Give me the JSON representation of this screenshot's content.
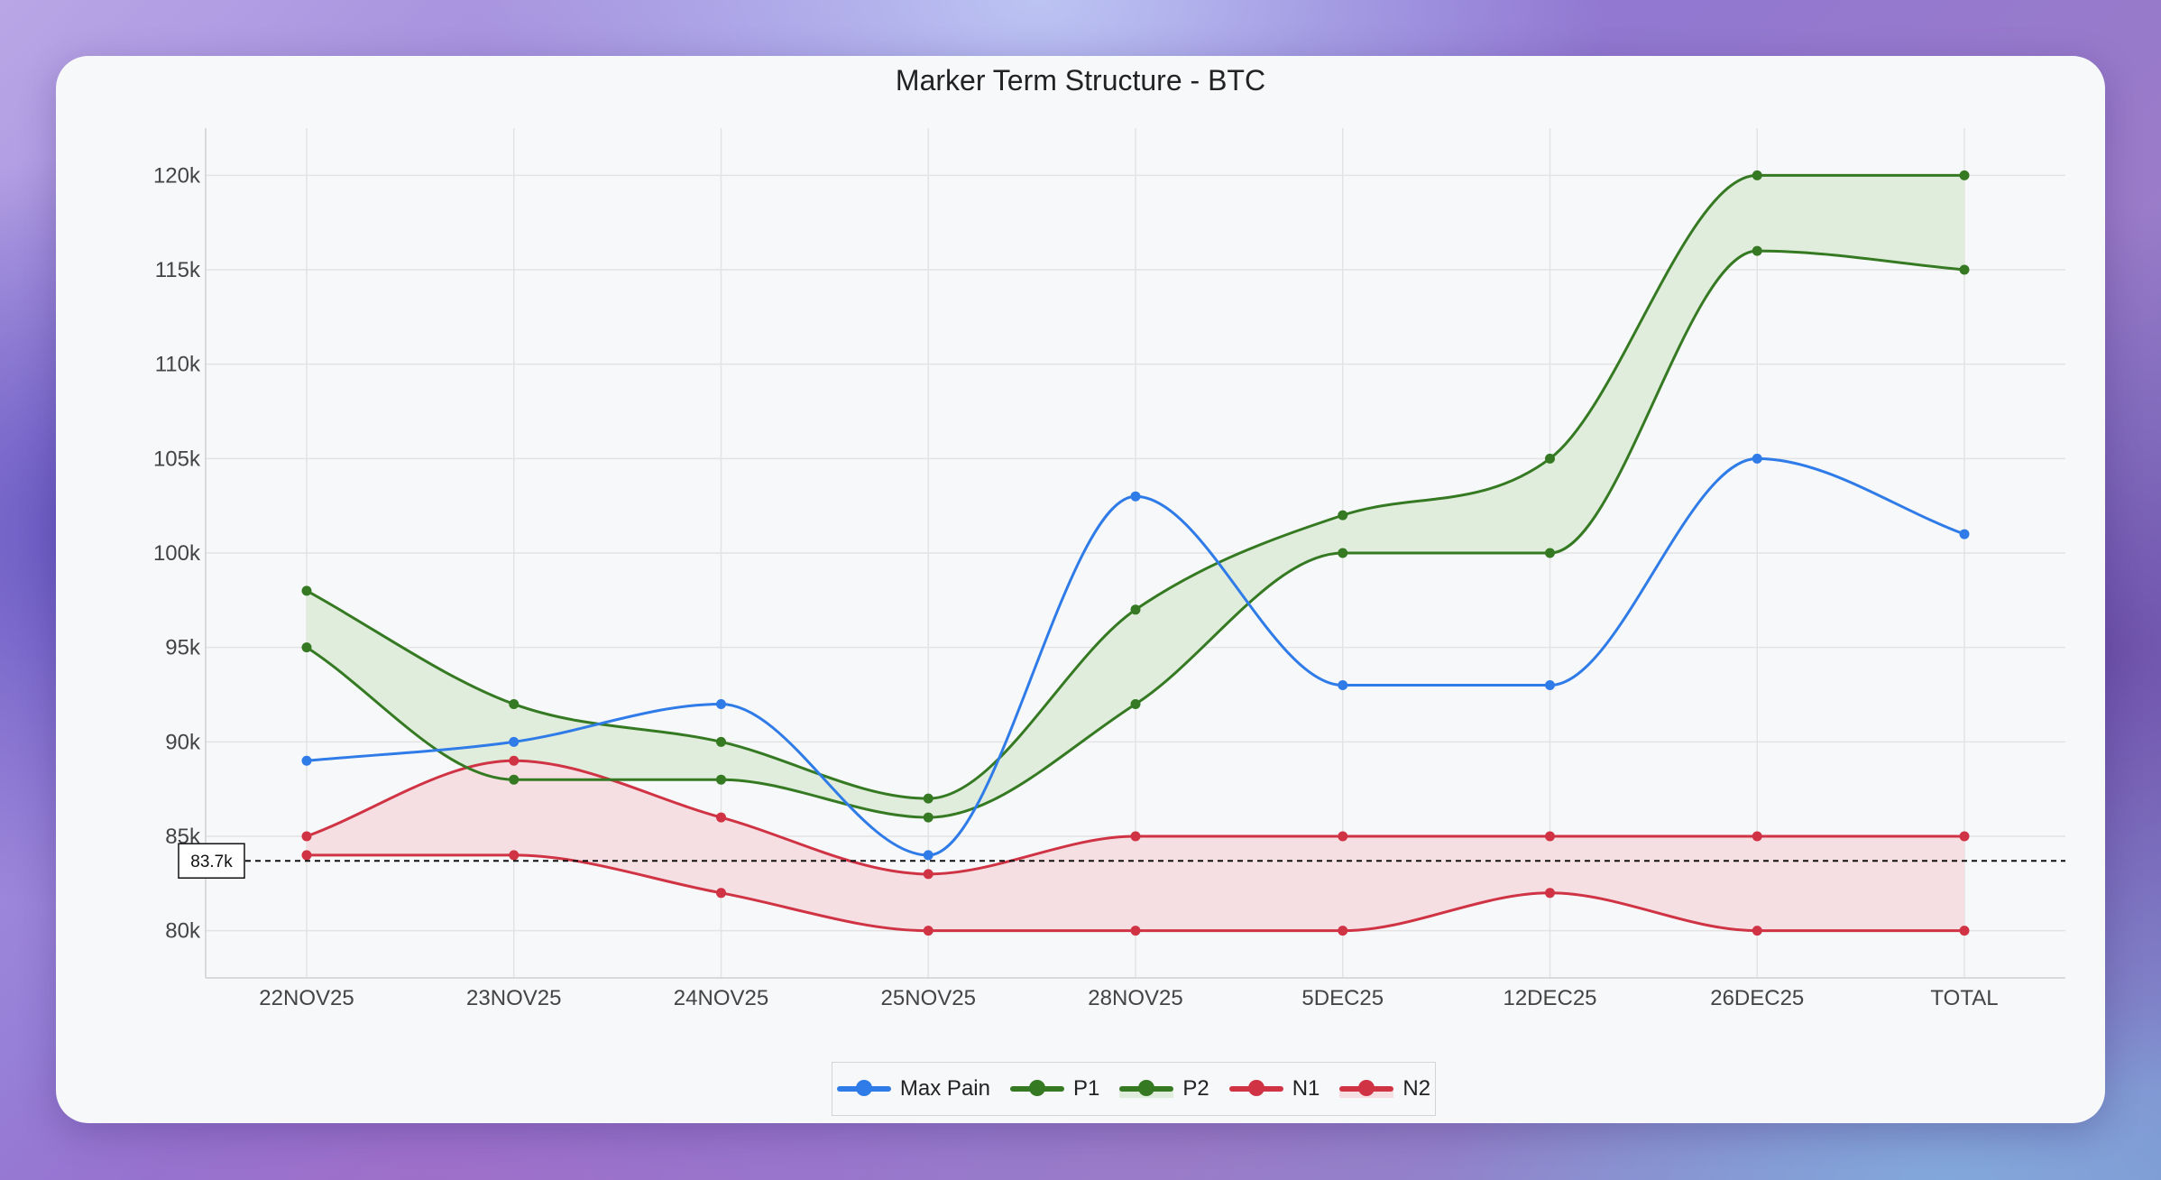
{
  "chart_data": {
    "type": "line",
    "title": "Marker Term Structure - BTC",
    "categories": [
      "22NOV25",
      "23NOV25",
      "24NOV25",
      "25NOV25",
      "28NOV25",
      "5DEC25",
      "12DEC25",
      "26DEC25",
      "TOTAL"
    ],
    "ylim": [
      77500,
      122500
    ],
    "yticks": [
      80000,
      85000,
      90000,
      95000,
      100000,
      105000,
      110000,
      115000,
      120000
    ],
    "ytick_labels": [
      "80k",
      "85k",
      "90k",
      "95k",
      "100k",
      "105k",
      "110k",
      "115k",
      "120k"
    ],
    "grid": true,
    "series": [
      {
        "name": "Max Pain",
        "color": "#2f7be8",
        "values": [
          89000,
          90000,
          92000,
          84000,
          103000,
          93000,
          93000,
          105000,
          101000
        ]
      },
      {
        "name": "P1",
        "color": "#357a22",
        "values": [
          95000,
          88000,
          88000,
          86000,
          92000,
          100000,
          100000,
          116000,
          115000
        ]
      },
      {
        "name": "P2",
        "color": "#357a22",
        "fill_color": "#e0ecdc",
        "values": [
          98000,
          92000,
          90000,
          87000,
          97000,
          102000,
          105000,
          120000,
          120000
        ]
      },
      {
        "name": "N1",
        "color": "#cf3344",
        "values": [
          84000,
          84000,
          82000,
          80000,
          80000,
          80000,
          82000,
          80000,
          80000
        ]
      },
      {
        "name": "N2",
        "color": "#cf3344",
        "fill_color": "#f5dfe2",
        "values": [
          85000,
          89000,
          86000,
          83000,
          85000,
          85000,
          85000,
          85000,
          85000
        ]
      }
    ],
    "reference_line": {
      "value": 83700,
      "label": "83.7k",
      "style": "dashed"
    },
    "legend_position": "bottom-center"
  }
}
